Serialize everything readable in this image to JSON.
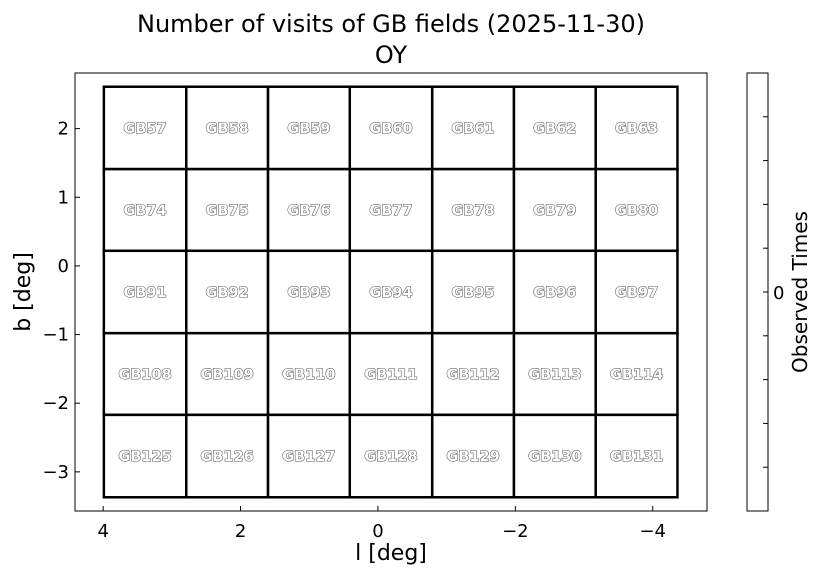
{
  "chart_data": {
    "type": "heatmap",
    "title": "Number of visits of GB fields (2025-11-30)",
    "subtitle": "OY",
    "xlabel": "l [deg]",
    "ylabel": "b [deg]",
    "xlim": [
      4.41,
      -4.79
    ],
    "ylim": [
      -3.57,
      2.81
    ],
    "xticks": [
      4,
      2,
      0,
      -2,
      -4
    ],
    "xtick_labels": [
      "4",
      "2",
      "0",
      "−2",
      "−4"
    ],
    "yticks": [
      2,
      1,
      0,
      -1,
      -2,
      -3
    ],
    "ytick_labels": [
      "2",
      "1",
      "0",
      "−1",
      "−2",
      "−3"
    ],
    "l_edges": [
      3.99,
      2.79,
      1.6,
      0.41,
      -0.79,
      -1.98,
      -3.17,
      -4.36
    ],
    "b_edges": [
      2.61,
      1.41,
      0.22,
      -0.98,
      -2.17,
      -3.37
    ],
    "fields": [
      [
        "GB57",
        "GB58",
        "GB59",
        "GB60",
        "GB61",
        "GB62",
        "GB63"
      ],
      [
        "GB74",
        "GB75",
        "GB76",
        "GB77",
        "GB78",
        "GB79",
        "GB80"
      ],
      [
        "GB91",
        "GB92",
        "GB93",
        "GB94",
        "GB95",
        "GB96",
        "GB97"
      ],
      [
        "GB108",
        "GB109",
        "GB110",
        "GB111",
        "GB112",
        "GB113",
        "GB114"
      ],
      [
        "GB125",
        "GB126",
        "GB127",
        "GB128",
        "GB129",
        "GB130",
        "GB131"
      ]
    ],
    "values": [
      [
        0,
        0,
        0,
        0,
        0,
        0,
        0
      ],
      [
        0,
        0,
        0,
        0,
        0,
        0,
        0
      ],
      [
        0,
        0,
        0,
        0,
        0,
        0,
        0
      ],
      [
        0,
        0,
        0,
        0,
        0,
        0,
        0
      ],
      [
        0,
        0,
        0,
        0,
        0,
        0,
        0
      ]
    ],
    "colorbar": {
      "label": "Observed Times",
      "tick_labels": [
        "0"
      ],
      "color": "#ffffff"
    },
    "grid": false,
    "cell_edge_color": "#000000"
  }
}
